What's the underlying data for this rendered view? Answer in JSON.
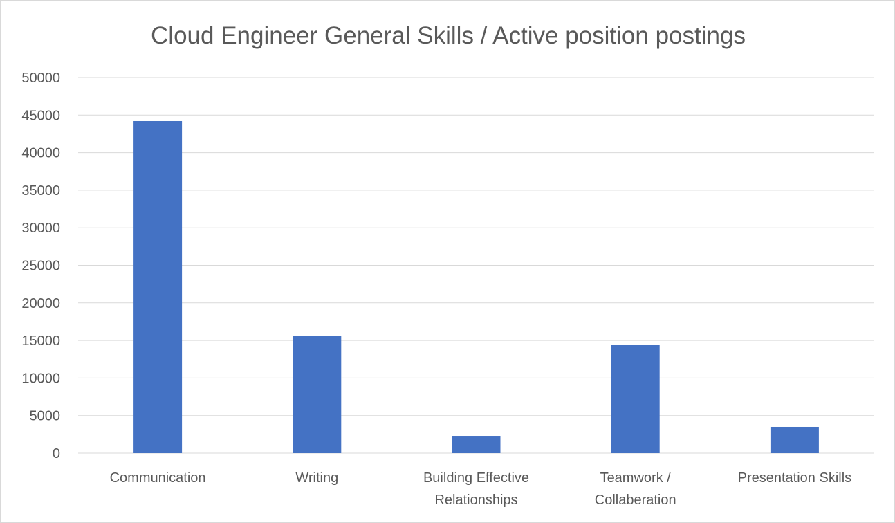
{
  "chart_data": {
    "type": "bar",
    "title": "Cloud Engineer General Skills / Active position postings",
    "xlabel": "",
    "ylabel": "",
    "ylim": [
      0,
      50000
    ],
    "yticks": [
      0,
      5000,
      10000,
      15000,
      20000,
      25000,
      30000,
      35000,
      40000,
      45000,
      50000
    ],
    "grid": true,
    "legend": "none",
    "categories": [
      [
        "Communication"
      ],
      [
        "Writing"
      ],
      [
        "Building Effective",
        "Relationships"
      ],
      [
        "Teamwork /",
        "Collaberation"
      ],
      [
        "Presentation Skills"
      ]
    ],
    "values": [
      44200,
      15600,
      2300,
      14400,
      3500
    ],
    "bar_color": "#4472c4"
  }
}
